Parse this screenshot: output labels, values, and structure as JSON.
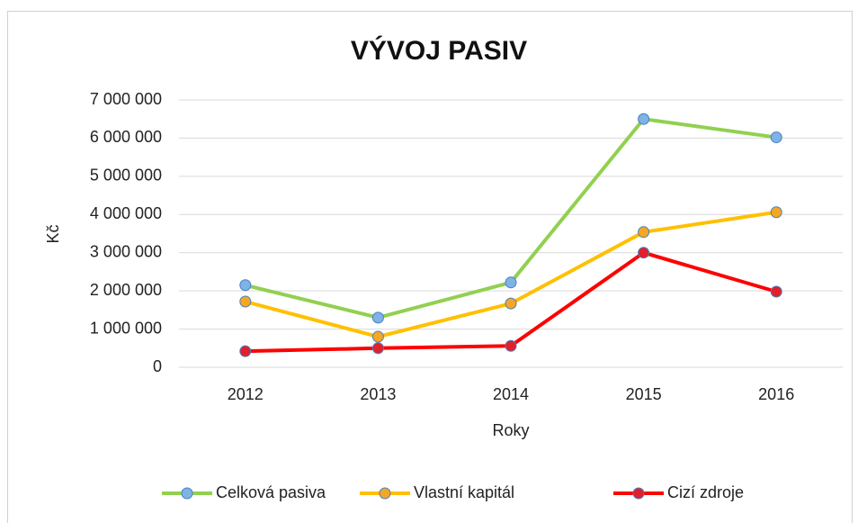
{
  "chart_data": {
    "type": "line",
    "title": "VÝVOJ PASIV",
    "x_label": "Roky",
    "y_label": "Kč",
    "categories": [
      "2012",
      "2013",
      "2014",
      "2015",
      "2016"
    ],
    "series": [
      {
        "name": "Celková pasiva",
        "color": "#92d050",
        "marker_color": "#7fb2e5",
        "values": [
          2150000,
          1300000,
          2220000,
          6500000,
          6020000
        ]
      },
      {
        "name": "Vlastní kapitál",
        "color": "#ffc000",
        "marker_color": "#f5a623",
        "values": [
          1720000,
          800000,
          1670000,
          3540000,
          4060000
        ]
      },
      {
        "name": "Cizí zdroje",
        "color": "#ff0000",
        "marker_color": "#e0202a",
        "values": [
          420000,
          500000,
          560000,
          3000000,
          1980000
        ]
      }
    ],
    "ylim": [
      0,
      7000000
    ],
    "yticks": [
      0,
      {
        "value": 1000000,
        "label": "1 000 000"
      },
      {
        "value": 2000000,
        "label": "2 000 000"
      },
      {
        "value": 3000000,
        "label": "3 000 000"
      },
      {
        "value": 4000000,
        "label": "4 000 000"
      },
      {
        "value": 5000000,
        "label": "5 000 000"
      },
      {
        "value": 6000000,
        "label": "6 000 000"
      },
      {
        "value": 7000000,
        "label": "7 000 000"
      }
    ],
    "grid": true,
    "legend": "bottom"
  }
}
